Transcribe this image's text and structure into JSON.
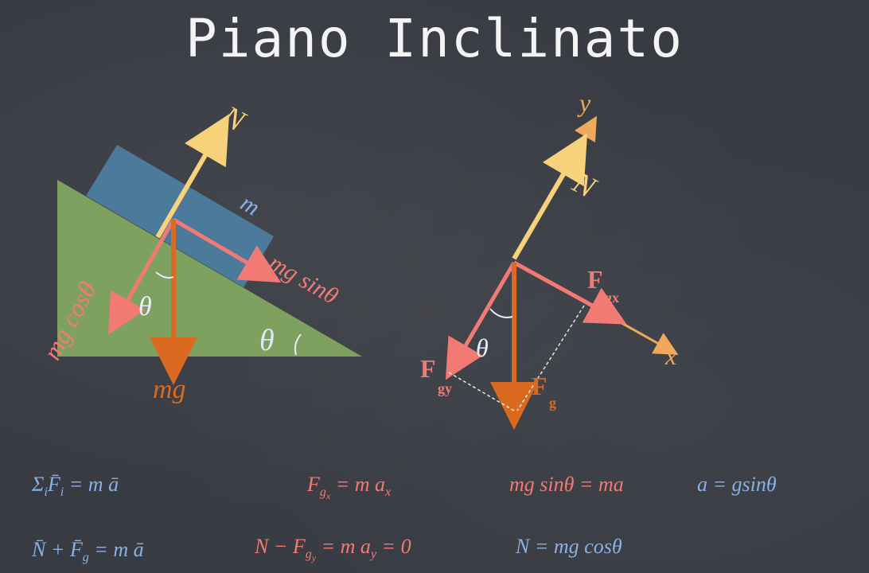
{
  "title": "Piano Inclinato",
  "left_diagram": {
    "normal_label": "N",
    "mass_label": "m",
    "mg_cos_label": "mg cosθ",
    "mg_sin_label": "mg sinθ",
    "theta_label": "θ",
    "incline_theta_label": "θ",
    "mg_label": "mg"
  },
  "right_diagram": {
    "y_label": "y",
    "x_label": "x",
    "normal_label": "N",
    "fgx_label": "F",
    "fgx_sub": "gx",
    "fgy_label": "F",
    "fgy_sub": "gy",
    "fg_label": "F",
    "fg_sub": "g",
    "theta_label": "θ"
  },
  "equations": {
    "eq1": "Σ",
    "eq1_sub": "i",
    "eq1_rest1": "F̄",
    "eq1_rest2": "= m ā",
    "eq2": "F",
    "eq2_rest": "= m a",
    "eq2_sub_x": "x",
    "eq3": "mg sinθ = ma",
    "eq4": "a = gsinθ",
    "eq5": "N̄ + F̄",
    "eq5_sub": "g",
    "eq5_rest": "= m ā",
    "eq6": "N − F",
    "eq6_rest": "= m a",
    "eq6_sub_y": "y",
    "eq6_zero": "= 0",
    "eq7": "N = mg cosθ"
  },
  "colors": {
    "incline": "#7fa15f",
    "block": "#4b7a9a",
    "normal_arrow": "#f7d27a",
    "component_arrow": "#f27a74",
    "gravity_arrow": "#d96a1f",
    "axis": "#f0a85a"
  }
}
